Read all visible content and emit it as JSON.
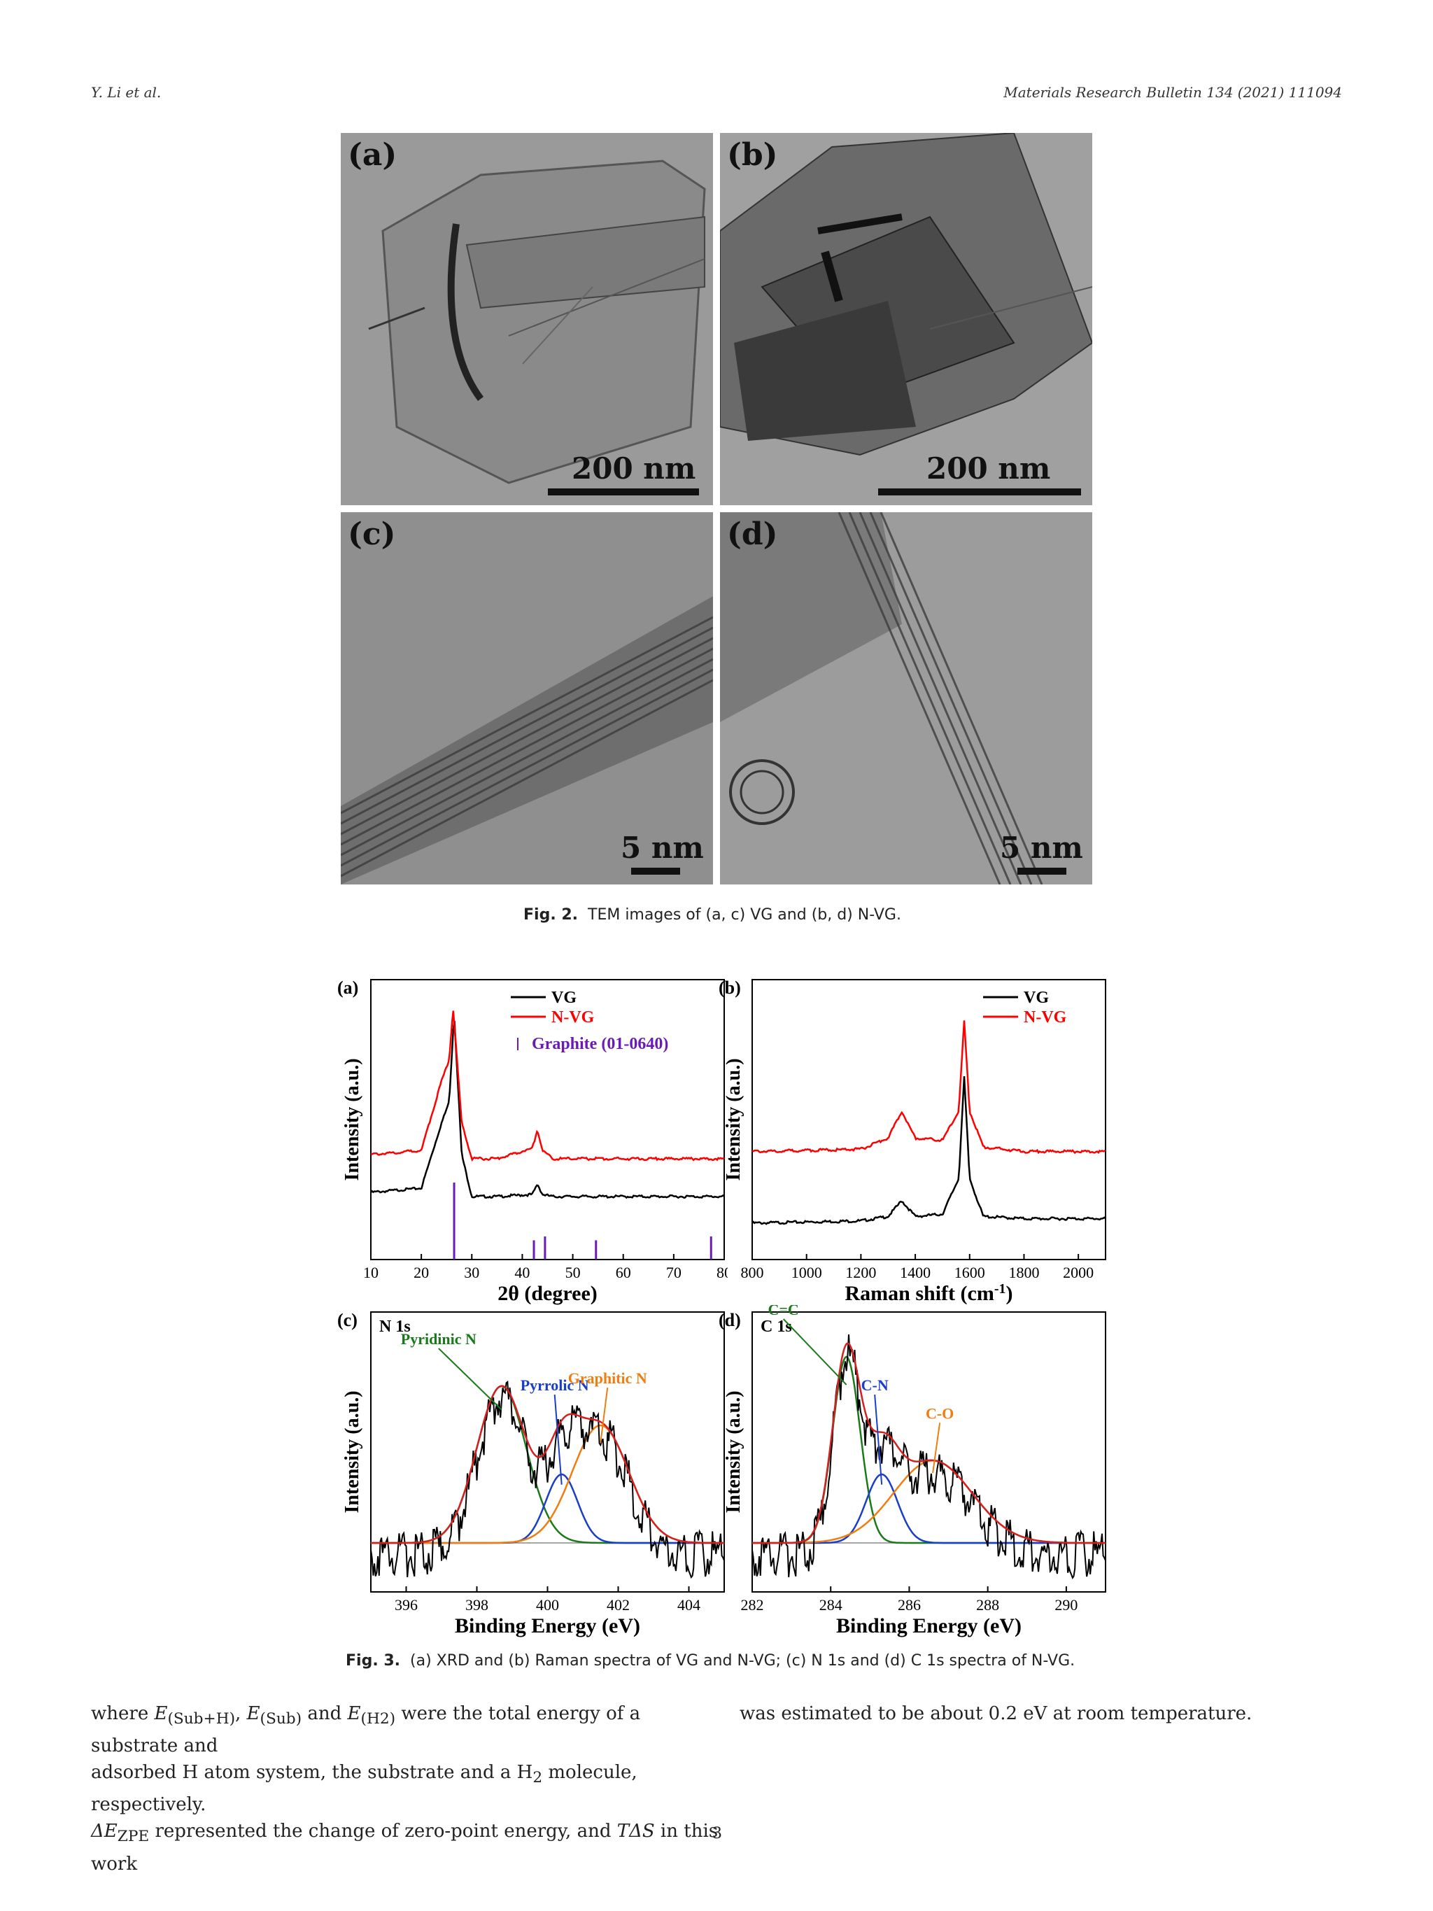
{
  "header": {
    "authors": "Y. Li et al.",
    "journal": "Materials Research Bulletin 134 (2021) 111094"
  },
  "figure2": {
    "panels": [
      {
        "label": "(a)",
        "scale": "200 nm"
      },
      {
        "label": "(b)",
        "scale": "200 nm"
      },
      {
        "label": "(c)",
        "scale": "5 nm"
      },
      {
        "label": "(d)",
        "scale": "5 nm"
      }
    ],
    "caption_prefix": "Fig. 2.",
    "caption_text": "TEM images of (a, c) VG and (b, d) N-VG."
  },
  "figure3": {
    "caption_prefix": "Fig. 3.",
    "caption_text": "(a) XRD and (b) Raman spectra of VG and N-VG; (c) N 1s and (d) C 1s spectra of N-VG."
  },
  "chart_data": [
    {
      "type": "line",
      "panel": "(a)",
      "xlabel": "2θ (degree)",
      "ylabel": "Intensity (a.u.)",
      "xlim": [
        10,
        80
      ],
      "xticks": [
        10,
        20,
        30,
        40,
        50,
        60,
        70,
        80
      ],
      "legend_position": "top-right",
      "series": [
        {
          "name": "VG",
          "color": "#000000",
          "x": [
            10,
            20,
            24,
            25.5,
            26.5,
            28,
            30,
            35,
            42,
            43,
            44,
            46,
            54,
            60,
            70,
            77.5,
            80
          ],
          "y": [
            0.12,
            0.14,
            0.45,
            0.55,
            0.97,
            0.3,
            0.1,
            0.1,
            0.11,
            0.16,
            0.11,
            0.1,
            0.1,
            0.1,
            0.1,
            0.1,
            0.1
          ]
        },
        {
          "name": "N-VG",
          "color": "#ff0000",
          "x": [
            10,
            20,
            24,
            25.5,
            26.3,
            28,
            30,
            35,
            42,
            43,
            44,
            46,
            54,
            60,
            70,
            77.5,
            80
          ],
          "y": [
            0.3,
            0.32,
            0.65,
            0.75,
            1.0,
            0.45,
            0.28,
            0.28,
            0.33,
            0.42,
            0.32,
            0.28,
            0.28,
            0.28,
            0.28,
            0.28,
            0.28
          ]
        }
      ],
      "reference": {
        "name": "Graphite (01-0640)",
        "color": "#6a1bb5",
        "positions": [
          26.5,
          42.3,
          44.5,
          54.6,
          77.4
        ],
        "heights": [
          1.0,
          0.25,
          0.3,
          0.25,
          0.3
        ]
      }
    },
    {
      "type": "line",
      "panel": "(b)",
      "xlabel": "Raman shift (cm-1)",
      "ylabel": "Intensity (a.u.)",
      "xlim": [
        800,
        2100
      ],
      "xticks": [
        800,
        1000,
        1200,
        1400,
        1600,
        1800,
        2000
      ],
      "legend_position": "top-right",
      "series": [
        {
          "name": "VG",
          "color": "#000000",
          "x": [
            800,
            1200,
            1300,
            1350,
            1400,
            1500,
            1560,
            1580,
            1600,
            1650,
            1800,
            2100
          ],
          "y": [
            0.1,
            0.11,
            0.13,
            0.2,
            0.13,
            0.14,
            0.3,
            0.75,
            0.3,
            0.13,
            0.12,
            0.12
          ]
        },
        {
          "name": "N-VG",
          "color": "#ff0000",
          "x": [
            800,
            1200,
            1300,
            1350,
            1400,
            1500,
            1560,
            1580,
            1600,
            1650,
            1800,
            2100
          ],
          "y": [
            0.42,
            0.43,
            0.48,
            0.6,
            0.48,
            0.47,
            0.6,
            1.0,
            0.6,
            0.44,
            0.42,
            0.42
          ]
        }
      ]
    },
    {
      "type": "line",
      "panel": "(c)",
      "title": "N 1s",
      "xlabel": "Binding Energy (eV)",
      "ylabel": "Intensity (a.u.)",
      "xlim": [
        395,
        405
      ],
      "xticks": [
        396,
        398,
        400,
        402,
        404
      ],
      "annotations": [
        {
          "text": "Pyridinic N",
          "color": "#1a7a1a"
        },
        {
          "text": "Pyrrolic N",
          "color": "#1a3ec8"
        },
        {
          "text": "Graphitic N",
          "color": "#f07d10"
        }
      ],
      "peaks": [
        {
          "name": "Pyridinic N",
          "center": 398.7,
          "height": 0.8,
          "width": 0.7,
          "color": "#1a7a1a"
        },
        {
          "name": "Pyrrolic N",
          "center": 400.4,
          "height": 0.35,
          "width": 0.45,
          "color": "#1a3ec8"
        },
        {
          "name": "Graphitic N",
          "center": 401.5,
          "height": 0.6,
          "width": 0.8,
          "color": "#f07d10"
        }
      ]
    },
    {
      "type": "line",
      "panel": "(d)",
      "title": "C 1s",
      "xlabel": "Binding Energy (eV)",
      "ylabel": "Intensity (a.u.)",
      "xlim": [
        282,
        291
      ],
      "xticks": [
        282,
        284,
        286,
        288,
        290
      ],
      "annotations": [
        {
          "text": "C=C",
          "color": "#1a7a1a"
        },
        {
          "text": "C-N",
          "color": "#1a3ec8"
        },
        {
          "text": "C-O",
          "color": "#f07d10"
        }
      ],
      "peaks": [
        {
          "name": "C=C",
          "center": 284.4,
          "height": 0.95,
          "width": 0.35,
          "color": "#1a7a1a"
        },
        {
          "name": "C-N",
          "center": 285.3,
          "height": 0.35,
          "width": 0.4,
          "color": "#1a3ec8"
        },
        {
          "name": "C-O",
          "center": 286.6,
          "height": 0.42,
          "width": 1.0,
          "color": "#f07d10"
        }
      ]
    }
  ],
  "body": {
    "left_line1_a": "where ",
    "left_line1_b": "E",
    "left_line1_c": "(Sub+H)",
    "left_line1_d": ", ",
    "left_line1_e": "E",
    "left_line1_f": "(Sub)",
    "left_line1_g": " and ",
    "left_line1_h": "E",
    "left_line1_i": "(H2)",
    "left_line1_j": " were the total energy of a substrate and",
    "left_line2_a": "adsorbed H atom system, the substrate and a H",
    "left_line2_b": "2",
    "left_line2_c": " molecule, respectively.",
    "left_line3_a": "ΔE",
    "left_line3_b": "ZPE",
    "left_line3_c": " represented the change of zero-point energy, and ",
    "left_line3_d": "TΔS",
    "left_line3_e": " in this work",
    "right_line1": "was estimated to be about 0.2 eV at room temperature."
  },
  "page_number": "3"
}
